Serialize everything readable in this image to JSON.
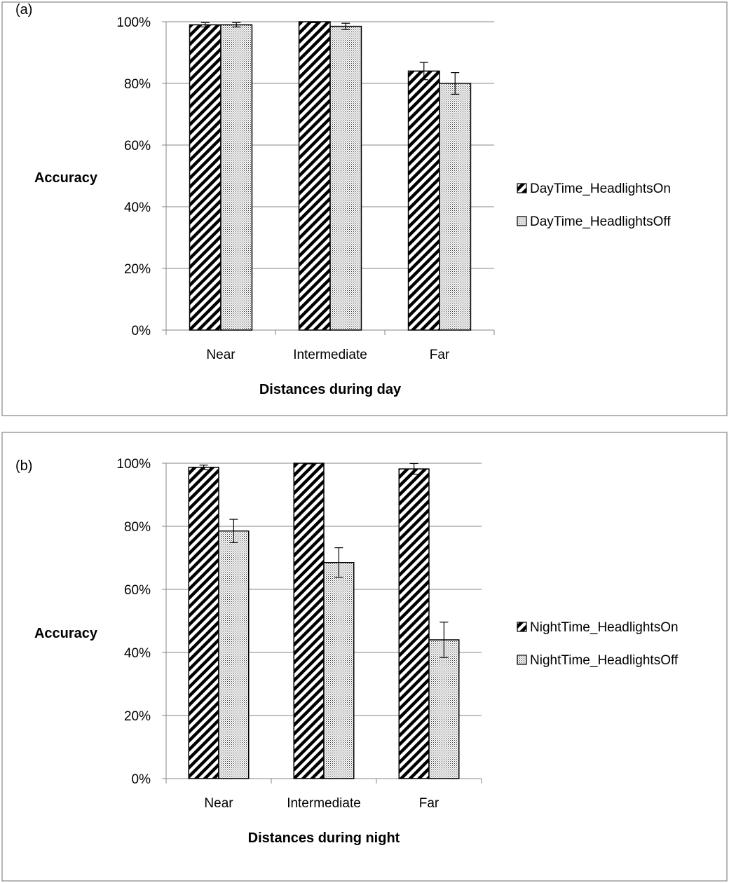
{
  "chart_data": [
    {
      "type": "bar",
      "panel_label": "(a)",
      "title": "",
      "xlabel": "Distances during day",
      "ylabel": "Accuracy",
      "categories": [
        "Near",
        "Intermediate",
        "Far"
      ],
      "yticks": [
        "0%",
        "20%",
        "40%",
        "60%",
        "80%",
        "100%"
      ],
      "ylim": [
        0,
        100
      ],
      "grid": true,
      "legend_position": "right",
      "series": [
        {
          "name": "DayTime_HeadlightsOn",
          "pattern": "diagonal-hatch",
          "values": [
            99,
            100,
            84
          ],
          "errors": [
            0.7,
            0.3,
            2.8
          ]
        },
        {
          "name": "DayTime_HeadlightsOff",
          "pattern": "dots",
          "values": [
            99,
            98.5,
            80
          ],
          "errors": [
            0.7,
            1.0,
            3.5
          ]
        }
      ]
    },
    {
      "type": "bar",
      "panel_label": "(b)",
      "title": "",
      "xlabel": "Distances during night",
      "ylabel": "Accuracy",
      "categories": [
        "Near",
        "Intermediate",
        "Far"
      ],
      "yticks": [
        "0%",
        "20%",
        "40%",
        "60%",
        "80%",
        "100%"
      ],
      "ylim": [
        0,
        100
      ],
      "grid": true,
      "legend_position": "right",
      "series": [
        {
          "name": "NightTime_HeadlightsOn",
          "pattern": "diagonal-hatch",
          "values": [
            98.7,
            100,
            98.2
          ],
          "errors": [
            0.7,
            0.2,
            1.7
          ]
        },
        {
          "name": "NightTime_HeadlightsOff",
          "pattern": "dots",
          "values": [
            78.5,
            68.5,
            44
          ],
          "errors": [
            3.7,
            4.7,
            5.6
          ]
        }
      ]
    }
  ]
}
